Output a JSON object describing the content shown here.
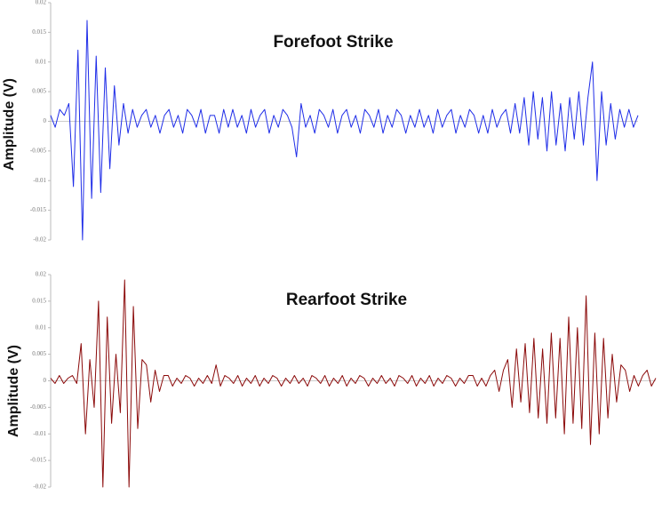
{
  "chart_data": [
    {
      "type": "line",
      "title": "Forefoot Strike",
      "y_label": "Amplitude (V)",
      "color": "#1f2de8",
      "ylim": [
        -0.02,
        0.02
      ],
      "yticks": [
        0.02,
        0.015,
        0.01,
        0.005,
        0,
        -0.005,
        -0.01,
        -0.015,
        -0.02
      ],
      "zero_line": true,
      "values": [
        0.001,
        -0.001,
        0.002,
        0.001,
        0.003,
        -0.011,
        0.012,
        -0.02,
        0.017,
        -0.013,
        0.011,
        -0.012,
        0.009,
        -0.008,
        0.006,
        -0.004,
        0.003,
        -0.002,
        0.002,
        -0.001,
        0.001,
        0.002,
        -0.001,
        0.001,
        -0.002,
        0.001,
        0.002,
        -0.001,
        0.001,
        -0.002,
        0.002,
        0.001,
        -0.001,
        0.002,
        -0.002,
        0.001,
        0.001,
        -0.002,
        0.002,
        -0.001,
        0.002,
        -0.001,
        0.001,
        -0.002,
        0.002,
        -0.001,
        0.001,
        0.002,
        -0.002,
        0.001,
        -0.001,
        0.002,
        0.001,
        -0.001,
        -0.006,
        0.003,
        -0.001,
        0.001,
        -0.002,
        0.002,
        0.001,
        -0.001,
        0.002,
        -0.002,
        0.001,
        0.002,
        -0.001,
        0.001,
        -0.002,
        0.002,
        0.001,
        -0.001,
        0.002,
        -0.002,
        0.001,
        -0.001,
        0.002,
        0.001,
        -0.002,
        0.001,
        -0.001,
        0.002,
        -0.001,
        0.001,
        -0.002,
        0.002,
        -0.001,
        0.001,
        0.002,
        -0.002,
        0.001,
        -0.001,
        0.002,
        0.001,
        -0.002,
        0.001,
        -0.002,
        0.002,
        -0.001,
        0.001,
        0.002,
        -0.002,
        0.003,
        -0.002,
        0.004,
        -0.004,
        0.005,
        -0.003,
        0.004,
        -0.005,
        0.005,
        -0.004,
        0.003,
        -0.005,
        0.004,
        -0.003,
        0.005,
        -0.004,
        0.004,
        0.01,
        -0.01,
        0.005,
        -0.004,
        0.003,
        -0.003,
        0.002,
        -0.001,
        0.002,
        -0.001,
        0.001
      ]
    },
    {
      "type": "line",
      "title": "Rearfoot Strike",
      "y_label": "Amplitude (V)",
      "color": "#8b0a0a",
      "ylim": [
        -0.02,
        0.02
      ],
      "yticks": [
        0.02,
        0.015,
        0.01,
        0.005,
        0,
        -0.005,
        -0.01,
        -0.015,
        -0.02
      ],
      "zero_line": true,
      "values": [
        0.0005,
        -0.0005,
        0.001,
        -0.0005,
        0.0005,
        0.001,
        -0.0005,
        0.007,
        -0.01,
        0.004,
        -0.005,
        0.015,
        -0.02,
        0.012,
        -0.008,
        0.005,
        -0.006,
        0.019,
        -0.02,
        0.014,
        -0.009,
        0.004,
        0.003,
        -0.004,
        0.002,
        -0.002,
        0.001,
        0.001,
        -0.001,
        0.0005,
        -0.0005,
        0.001,
        0.0005,
        -0.001,
        0.0005,
        -0.0005,
        0.001,
        -0.0005,
        0.003,
        -0.001,
        0.001,
        0.0005,
        -0.0005,
        0.001,
        -0.001,
        0.0005,
        -0.0005,
        0.001,
        -0.001,
        0.0005,
        -0.0005,
        0.001,
        0.0005,
        -0.001,
        0.0005,
        -0.0005,
        0.001,
        -0.0005,
        0.0005,
        -0.001,
        0.001,
        0.0005,
        -0.0005,
        0.001,
        -0.001,
        0.0005,
        -0.0005,
        0.001,
        -0.001,
        0.0005,
        -0.0005,
        0.001,
        0.0005,
        -0.001,
        0.0005,
        -0.0005,
        0.001,
        -0.0005,
        0.0005,
        -0.001,
        0.001,
        0.0005,
        -0.0005,
        0.001,
        -0.001,
        0.0005,
        -0.0005,
        0.001,
        -0.001,
        0.0005,
        -0.0005,
        0.001,
        0.0005,
        -0.001,
        0.0005,
        -0.0005,
        0.001,
        0.001,
        -0.001,
        0.0005,
        -0.001,
        0.001,
        0.002,
        -0.002,
        0.002,
        0.004,
        -0.005,
        0.006,
        -0.004,
        0.007,
        -0.006,
        0.008,
        -0.007,
        0.006,
        -0.008,
        0.009,
        -0.007,
        0.008,
        -0.01,
        0.012,
        -0.008,
        0.01,
        -0.009,
        0.016,
        -0.012,
        0.009,
        -0.01,
        0.008,
        -0.007,
        0.005,
        -0.004,
        0.003,
        0.002,
        -0.002,
        0.001,
        -0.001,
        0.001,
        0.002,
        -0.001,
        0.0005
      ]
    }
  ]
}
